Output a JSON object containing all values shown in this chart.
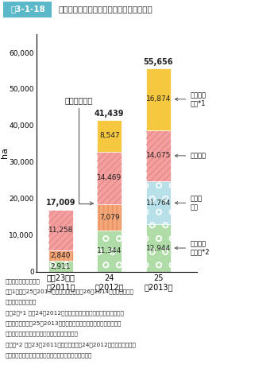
{
  "title_box": "図3-1-18",
  "title_main": "環境保全型農業直接支援の実施面積の推移",
  "ylabel": "ha",
  "ylim": [
    0,
    65000
  ],
  "yticks": [
    0,
    10000,
    20000,
    30000,
    40000,
    50000,
    60000
  ],
  "ytick_labels": [
    "0",
    "10,000",
    "20,000",
    "30,000",
    "40,000",
    "50,000",
    "60,000"
  ],
  "categories": [
    "平成23年度\n（2011）",
    "24\n（2012）",
    "25\n（2013）"
  ],
  "cover_crop_values": [
    2911,
    11344,
    12944
  ],
  "cover_crop_color": "#b0dca8",
  "compost_values": [
    2840,
    7079,
    11764
  ],
  "compost_color_2011": "#f4a87a",
  "compost_color_2012": "#f4a87a",
  "compost_color_2013": "#b8e0e8",
  "organic_values": [
    11258,
    14469,
    14075
  ],
  "organic_color": "#f4a0a0",
  "regional_values": [
    0,
    8547,
    16874
  ],
  "regional_color": "#f5c840",
  "totals": [
    17009,
    41439,
    55656
  ],
  "fuyu_label": "冬期湛水管理",
  "label_chiiki": "地域特認\n取組*1",
  "label_yuki": "有機農業",
  "label_taihi": "堆肥の\n施用",
  "label_cover": "カバーク\nロップ*2",
  "source": "資料：農林水産省調べ",
  "note1a": "注：1）平成25（2013）年度の数値は平成26（2014）年１月末現在",
  "note1b": "　　　　の概数値。",
  "note2a": "　　2）*1 平成24（2012）年度の地域特認取組は堆肥の施用を含",
  "note2b": "　　　　む。平成25（2013）年度の地域特認取組は草生栽培、リビ",
  "note2c": "　　　　ングマルチ及び冬期湛水管理をきむ。",
  "note3a": "　　　*2 平成23（2011）年度及び平成24（2012）年度のカバーク",
  "note3b": "　　　　ロップは、草生栽培、リビングマルチを含む。"
}
